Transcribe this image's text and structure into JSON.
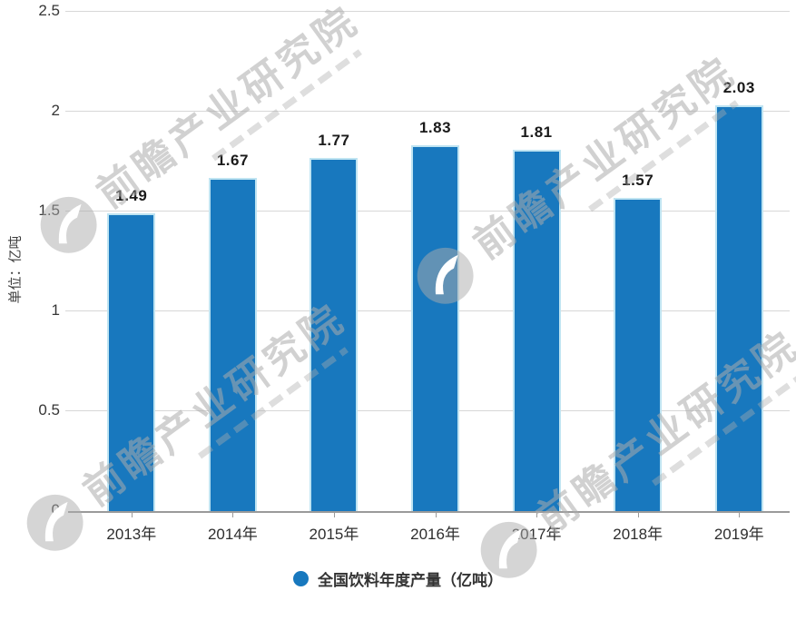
{
  "chart_data": {
    "type": "bar",
    "title": "",
    "categories": [
      "2013年",
      "2014年",
      "2015年",
      "2016年",
      "2017年",
      "2018年",
      "2019年"
    ],
    "values": [
      1.49,
      1.67,
      1.77,
      1.83,
      1.81,
      1.57,
      2.03
    ],
    "data_labels": [
      "1.49",
      "1.67",
      "1.77",
      "1.83",
      "1.81",
      "1.57",
      "2.03"
    ],
    "xlabel": "",
    "ylabel": "单位：亿吨",
    "ylim": [
      0,
      2.5
    ],
    "yticks": [
      "0",
      "0.5",
      "1",
      "1.5",
      "2",
      "2.5"
    ],
    "grid": true,
    "bar_color": "#1878be",
    "bar_edge_color": "#bfe4f2",
    "legend": {
      "position": "bottom",
      "items": [
        {
          "label": "全国饮料年度产量（亿吨）",
          "color": "#1878be"
        }
      ]
    }
  },
  "watermark": {
    "text": "前瞻产业研究院",
    "icon": "qianzhan-logo",
    "color": "#acacac"
  }
}
